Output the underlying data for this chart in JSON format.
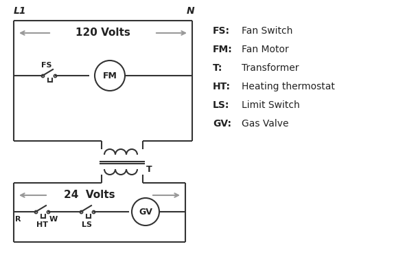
{
  "bg_color": "#ffffff",
  "line_color": "#333333",
  "arrow_color": "#999999",
  "text_color": "#222222",
  "legend": [
    [
      "FS:",
      "Fan Switch"
    ],
    [
      "FM:",
      "Fan Motor"
    ],
    [
      "T:",
      "Transformer"
    ],
    [
      "HT:",
      "Heating thermostat"
    ],
    [
      "LS:",
      "Limit Switch"
    ],
    [
      "GV:",
      "Gas Valve"
    ]
  ],
  "label_L1": "L1",
  "label_N": "N",
  "volts_120": "120 Volts",
  "volts_24": "24  Volts"
}
